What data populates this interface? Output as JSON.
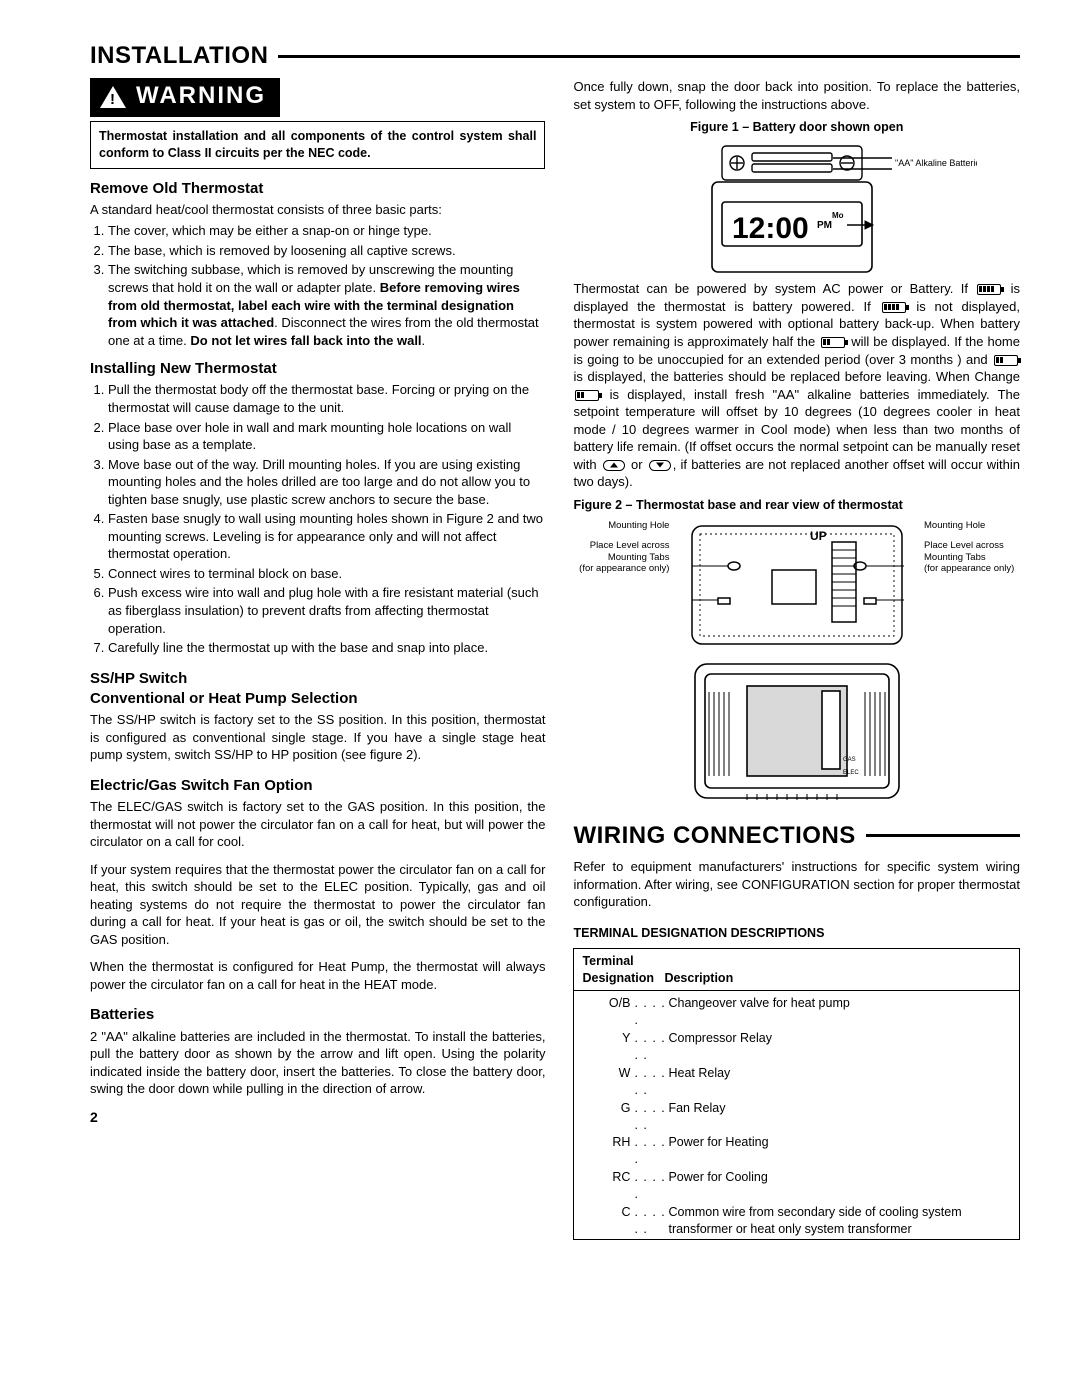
{
  "section1_title": "INSTALLATION",
  "warning_label": "WARNING",
  "warning_box": "Thermostat installation and all components of the control system shall conform to Class II circuits per the NEC code.",
  "remove_old_heading": "Remove Old Thermostat",
  "remove_old_intro": "A standard heat/cool thermostat consists of three basic parts:",
  "remove_old_items": [
    "The cover, which may be either a snap-on or hinge type.",
    "The base, which is removed by loosening all captive screws.",
    "The switching subbase, which is removed by unscrewing the mounting screws that hold it on the wall or adapter plate. <b>Before removing wires from old thermostat, label each wire with the terminal designation from which it was attached</b>. Disconnect the wires from the old thermostat one at a time. <b>Do not let wires fall back into the wall</b>."
  ],
  "install_new_heading": "Installing New Thermostat",
  "install_new_items": [
    "Pull the thermostat body off the thermostat base. Forcing or prying on the thermostat will cause damage to the unit.",
    "Place base over hole in wall and mark mounting hole locations on wall using base as a template.",
    "Move base out of the way. Drill mounting holes. If you are using existing mounting holes and the holes drilled are too large and do not allow you to tighten base snugly, use plastic screw anchors to secure the base.",
    "Fasten base snugly to wall using mounting holes shown in Figure 2 and two mounting screws. Leveling is for appearance only and will not affect thermostat operation.",
    "Connect wires to terminal block on base.",
    "Push excess wire into wall and plug hole with a fire resistant material (such as fiberglass insulation) to prevent drafts from affecting thermostat operation.",
    "Carefully line the thermostat up with the base and snap into place."
  ],
  "sshp_heading1": "SS/HP Switch",
  "sshp_heading2": "Conventional or Heat Pump Selection",
  "sshp_para": "The SS/HP switch is factory set to the SS position. In this position, thermostat is configured as conventional single stage. If you have a single stage heat pump system, switch SS/HP to HP position (see figure 2).",
  "elecgas_heading": "Electric/Gas Switch Fan Option",
  "elecgas_p1": "The ELEC/GAS switch is factory set to the GAS position. In this position, the thermostat will not power the circulator fan on a call for heat, but will power the circulator on a call for cool.",
  "elecgas_p2": "If your system requires that the thermostat power the circulator fan on a call for heat, this switch should be set to the ELEC position. Typically, gas and oil heating systems do not require the thermostat to power the circulator fan during a call for heat. If your heat is gas or oil, the switch should be set to the GAS position.",
  "elecgas_p3": "When the thermostat is configured for Heat Pump, the thermostat will always power the circulator fan on a call for heat in the HEAT mode.",
  "batteries_heading": "Batteries",
  "batteries_para": "2 \"AA\" alkaline batteries are included in the thermostat. To install the batteries, pull the battery door as shown by the arrow and lift open. Using the polarity indicated inside the battery door, insert the batteries. To close the battery door, swing the door down while pulling in the direction of arrow.",
  "col2_p1": "Once fully down, snap the door back into position. To replace the batteries, set system to OFF, following the instructions above.",
  "fig1_caption": "Figure 1 – Battery door shown open",
  "fig1_label_aa": "\"AA\" Alkaline Batteries",
  "power_para_parts": {
    "a": "Thermostat can be powered by system AC power or Battery. If ",
    "b": " is displayed the thermostat is battery powered. If ",
    "c": " is not displayed, thermostat is system powered with optional battery back-up. When battery power remaining is approximately half the ",
    "d": " will be displayed. If the home is going to be unoccupied for an extended period (over 3 months ) and ",
    "e": " is displayed, the batteries should be replaced before leaving. When Change ",
    "f": " is displayed, install fresh \"AA\" alkaline batteries immediately. The setpoint temperature will offset by 10 degrees (10 degrees cooler in heat mode / 10 degrees warmer in Cool mode) when less than two months of battery life remain. (If offset occurs the normal setpoint can be manually reset with ",
    "g": " or ",
    "h": ", if batteries are not replaced another offset will occur within two days)."
  },
  "fig2_caption": "Figure 2 – Thermostat base and rear view of thermostat",
  "fig2_labels": {
    "mounting_hole": "Mounting Hole",
    "place_level": "Place Level across Mounting Tabs",
    "appearance": "(for appearance only)",
    "up": "UP"
  },
  "section2_title": "WIRING CONNECTIONS",
  "wiring_intro": "Refer to equipment manufacturers' instructions for specific system wiring information. After wiring, see CONFIGURATION section for proper thermostat configuration.",
  "term_title": "TERMINAL DESIGNATION DESCRIPTIONS",
  "term_head1": "Terminal",
  "term_head2": "Designation",
  "term_head3": "Description",
  "terminals": [
    {
      "code": "O/B",
      "desc": "Changeover valve for heat pump"
    },
    {
      "code": "Y",
      "desc": "Compressor Relay"
    },
    {
      "code": "W",
      "desc": "Heat Relay"
    },
    {
      "code": "G",
      "desc": "Fan Relay"
    },
    {
      "code": "RH",
      "desc": "Power for Heating"
    },
    {
      "code": "RC",
      "desc": "Power for Cooling"
    },
    {
      "code": "C",
      "desc": "Common wire from secondary side of cooling system transformer or heat only system transformer"
    }
  ],
  "page_number": "2",
  "colors": {
    "bg": "#ffffff",
    "fg": "#000000"
  }
}
